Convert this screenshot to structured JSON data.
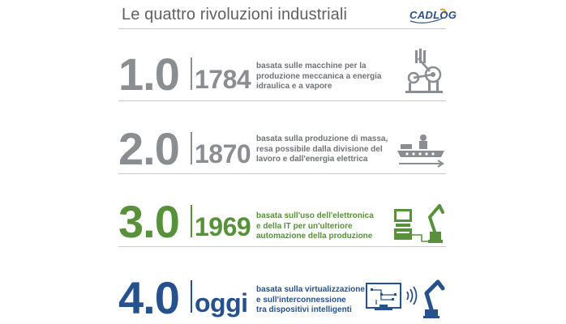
{
  "header": {
    "title": "Le quattro rivoluzioni industriali",
    "logo_text": "CADLOG"
  },
  "revolutions": [
    {
      "version": "1.0",
      "year": "1784",
      "description": [
        "basata sulle macchine per la",
        "produzione meccanica a energia",
        "idraulica e a vapore"
      ],
      "icon": "steam-machine-icon",
      "color": "#8a8d92"
    },
    {
      "version": "2.0",
      "year": "1870",
      "description": [
        "basata sulla  produzione di massa,",
        "resa possibile dalla divisione del",
        "lavoro e dall'energia elettrica"
      ],
      "icon": "assembly-line-icon",
      "color": "#8a8d92"
    },
    {
      "version": "3.0",
      "year": "1969",
      "description": [
        "basata sull'uso dell'elettronica",
        "e della IT per un'ulteriore",
        "automazione della produzione"
      ],
      "icon": "robot-computer-icon",
      "color": "#57913a"
    },
    {
      "version": "4.0",
      "year": "oggi",
      "description": [
        "basata sulla virtualizzazione",
        "e  sull'interconnessione",
        "tra dispositivi intelligenti"
      ],
      "icon": "connected-devices-icon",
      "color": "#25518e"
    }
  ]
}
